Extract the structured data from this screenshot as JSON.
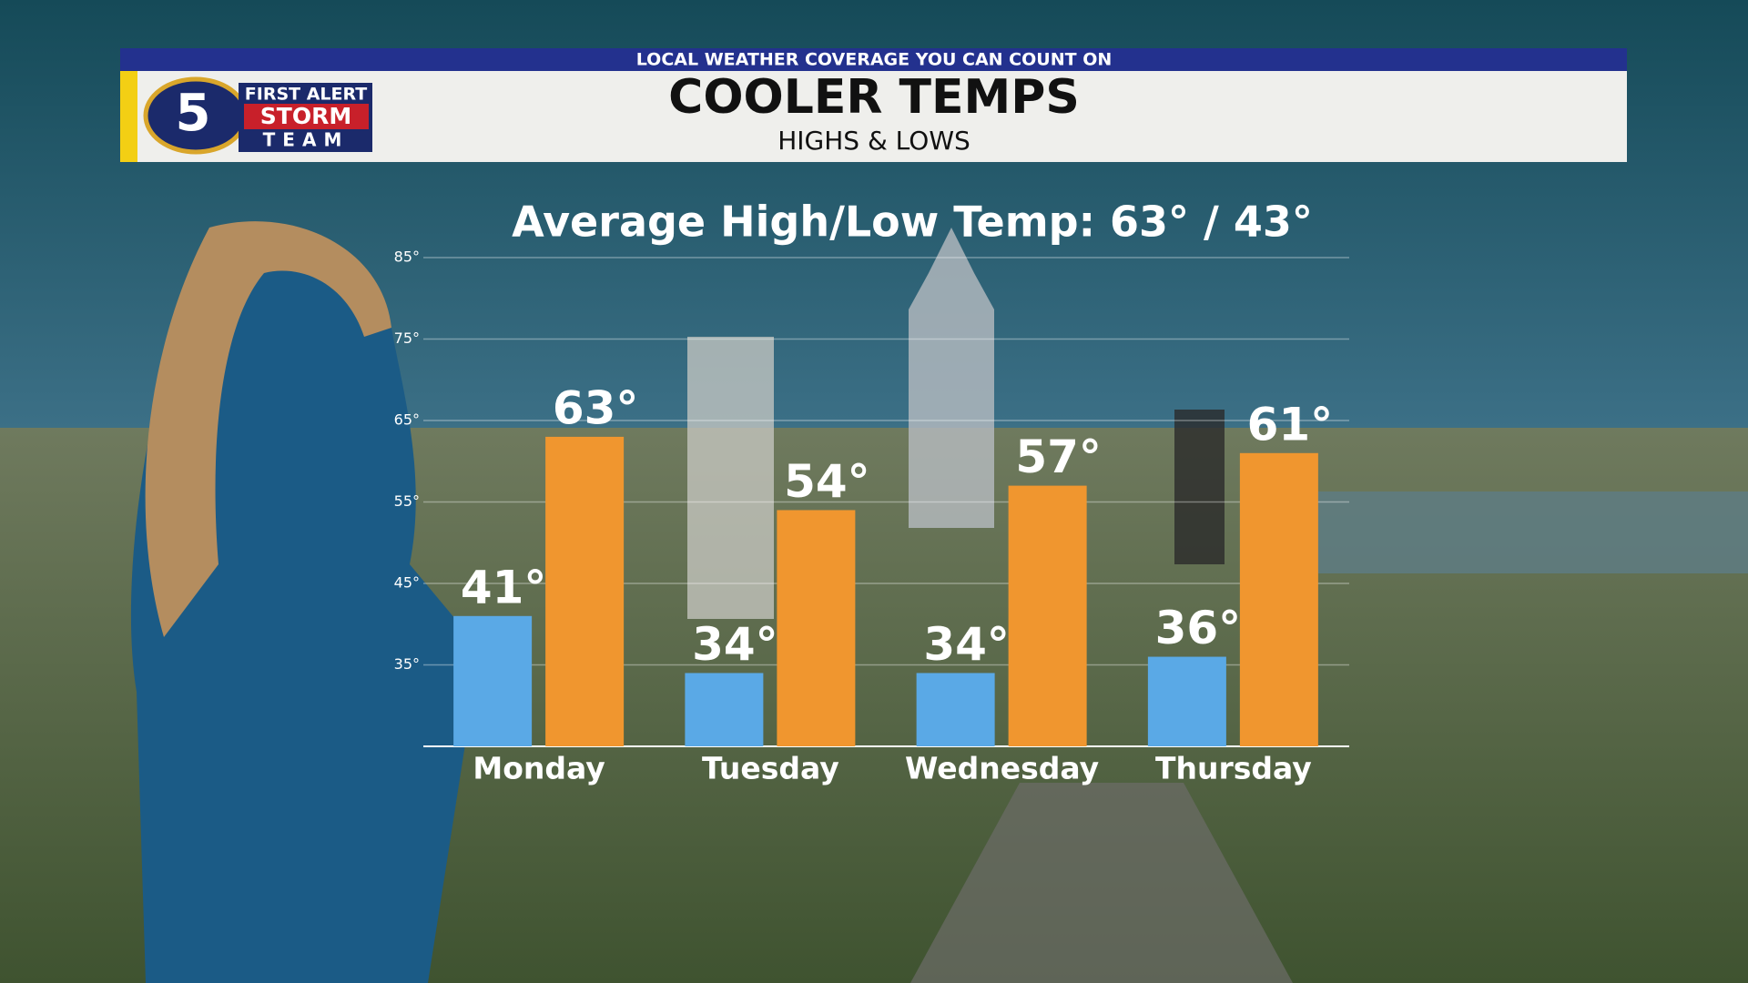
{
  "header": {
    "tagline": "LOCAL WEATHER COVERAGE YOU CAN COUNT ON",
    "title": "COOLER TEMPS",
    "subtitle": "HIGHS & LOWS",
    "logo": {
      "number": "5",
      "line1": "FIRST ALERT",
      "line2": "STORM",
      "line3": "TEAM"
    }
  },
  "chart_data": {
    "type": "bar",
    "title": "Average High/Low Temp: 63° / 43°",
    "categories": [
      "Monday",
      "Tuesday",
      "Wednesday",
      "Thursday"
    ],
    "series": [
      {
        "color": "#5aa9e6",
        "values": [
          41,
          34,
          34,
          36
        ],
        "value_labels": [
          "41°",
          "34°",
          "34°",
          "36°"
        ]
      },
      {
        "color": "#f0962f",
        "values": [
          63,
          54,
          57,
          61
        ],
        "value_labels": [
          "63°",
          "54°",
          "57°",
          "61°"
        ]
      }
    ],
    "ylim": [
      25,
      85
    ],
    "yticks": [
      {
        "value": 35,
        "label": "35°"
      },
      {
        "value": 45,
        "label": "45°"
      },
      {
        "value": 55,
        "label": "55°"
      },
      {
        "value": 65,
        "label": "65°"
      },
      {
        "value": 75,
        "label": "75°"
      },
      {
        "value": 85,
        "label": "85°"
      }
    ],
    "grid": true
  }
}
